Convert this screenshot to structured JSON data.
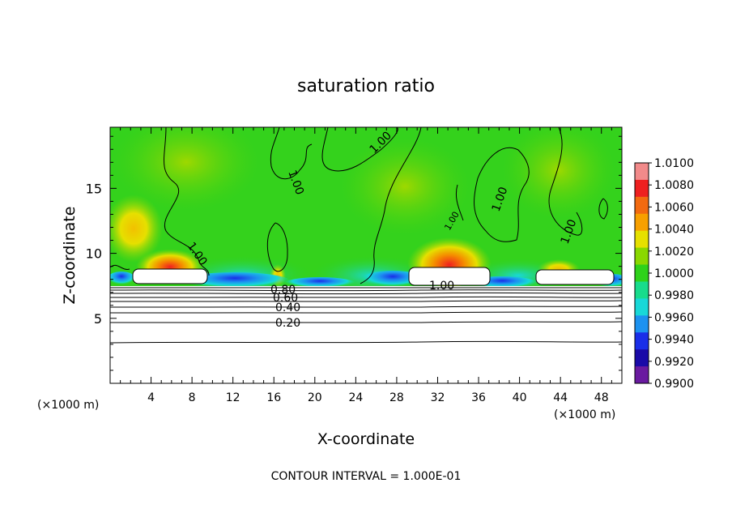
{
  "chart_data": {
    "type": "heatmap",
    "title": "saturation ratio",
    "xlabel": "X-coordinate",
    "ylabel": "Z-coordinate",
    "x_unit_left": "(×1000 m)",
    "x_unit_right": "(×1000 m)",
    "xlim": [
      0,
      50
    ],
    "ylim": [
      0,
      19.7
    ],
    "x_ticks": [
      "4",
      "8",
      "12",
      "16",
      "20",
      "24",
      "28",
      "32",
      "36",
      "40",
      "44",
      "48"
    ],
    "y_ticks": [
      "5",
      "10",
      "15"
    ],
    "footer": "CONTOUR INTERVAL = 1.000E-01",
    "colorbar": {
      "min": 0.99,
      "max": 1.01,
      "labels": [
        "1.0100",
        "1.0080",
        "1.0060",
        "1.0040",
        "1.0020",
        "1.0000",
        "0.9980",
        "0.9960",
        "0.9940",
        "0.9920",
        "0.9900"
      ],
      "colors": [
        "#f28a8a",
        "#ee2020",
        "#f26a10",
        "#f7a000",
        "#e6e000",
        "#8ad800",
        "#2ed21a",
        "#18dc8c",
        "#18d8d8",
        "#1c92f0",
        "#1a2ee8",
        "#1a0aa8",
        "#6a1aa0"
      ]
    },
    "contour_labels": [
      "1.00",
      "1.00",
      "1.00",
      "1.00",
      "1.00",
      "1.00",
      "1.00",
      "0.80",
      "0.60",
      "0.40",
      "0.20"
    ]
  }
}
